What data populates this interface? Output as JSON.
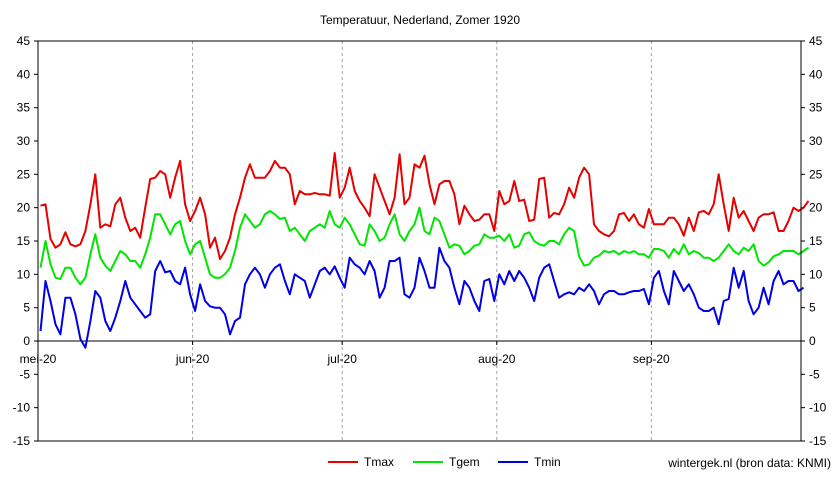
{
  "chart_data": {
    "type": "line",
    "title": "Temperatuur, Nederland, Zomer 1920",
    "credit": "wintergek.nl (bron data: KNMI)",
    "ylim": [
      -15,
      45
    ],
    "yticks": [
      -15,
      -10,
      -5,
      0,
      5,
      10,
      15,
      20,
      25,
      30,
      35,
      40,
      45
    ],
    "y_axis_both_sides": true,
    "grid": "vertical dashed at month starts",
    "legend": "bottom-center",
    "x_start": "1920-05-01",
    "x_end": "1920-09-30",
    "xtick_labels": [
      {
        "date": "1920-05-01",
        "label": "mei-20"
      },
      {
        "date": "1920-06-01",
        "label": "jun-20"
      },
      {
        "date": "1920-07-01",
        "label": "jul-20"
      },
      {
        "date": "1920-08-01",
        "label": "aug-20"
      },
      {
        "date": "1920-09-01",
        "label": "sep-20"
      }
    ],
    "series": [
      {
        "name": "Tmax",
        "color": "#e60000",
        "values": [
          20.3,
          20.5,
          15.3,
          14,
          14.5,
          16.3,
          14.5,
          14.2,
          14.5,
          16.5,
          20.5,
          25,
          17,
          17.5,
          17.2,
          20.5,
          21.5,
          18.5,
          16.5,
          17,
          15.5,
          20,
          24.3,
          24.5,
          25.5,
          25,
          21.5,
          24.5,
          27,
          20.5,
          18,
          19.5,
          21.5,
          19,
          14,
          15.5,
          12.3,
          13.5,
          15.5,
          19,
          21.5,
          24.5,
          26.5,
          24.5,
          24.5,
          24.5,
          25.5,
          27,
          26,
          26,
          25,
          20.5,
          22.5,
          22,
          22,
          22.2,
          22,
          22,
          21.8,
          28.2,
          21.5,
          23,
          26,
          22.5,
          21,
          20,
          18.7,
          25,
          23,
          21,
          19,
          21.5,
          28,
          20.5,
          21.5,
          26.5,
          26,
          27.8,
          23.5,
          20.5,
          23.5,
          24,
          24,
          22,
          17.5,
          20.3,
          19,
          18,
          18.2,
          19,
          19,
          16.5,
          22.5,
          20.5,
          21,
          24,
          21,
          21.2,
          18,
          18.2,
          24.3,
          24.5,
          18.5,
          19.2,
          19,
          20.5,
          23,
          21.5,
          24.5,
          26,
          25,
          17.5,
          16.5,
          16,
          15.7,
          16.5,
          19,
          19.2,
          18,
          19,
          17.5,
          17,
          19.8,
          17.5,
          17.5,
          17.5,
          18.5,
          18.5,
          17.5,
          15.8,
          18.5,
          16.5,
          19.3,
          19.5,
          19,
          20.5,
          25,
          20.5,
          16.5,
          21.5,
          18.5,
          19.5,
          18,
          16.5,
          18.5,
          19,
          19,
          19.3,
          16.5,
          16.5,
          18,
          20,
          19.5,
          20,
          21
        ]
      },
      {
        "name": "Tgem",
        "color": "#00e600",
        "values": [
          11,
          15,
          11.5,
          9.5,
          9.3,
          11,
          11,
          9.5,
          8.5,
          9.5,
          13,
          16,
          12.5,
          11.3,
          10.5,
          12,
          13.5,
          13,
          12,
          12,
          11,
          13,
          15.5,
          19,
          19,
          17.5,
          16,
          17.5,
          18,
          15,
          13,
          14.5,
          15,
          12.5,
          10,
          9.5,
          9.5,
          10,
          11,
          13.5,
          17,
          19,
          18,
          17,
          17.5,
          19,
          19.5,
          19,
          18.3,
          18.5,
          16.5,
          17,
          16,
          15,
          16.5,
          17,
          17.5,
          17,
          19.5,
          17.5,
          17,
          18.5,
          17.5,
          16,
          14.5,
          14.3,
          17.5,
          16.5,
          15,
          15.5,
          17.5,
          19,
          16,
          15,
          16.5,
          17.5,
          20,
          16.5,
          16,
          18.5,
          18,
          16,
          14,
          14.5,
          14.3,
          13,
          13.5,
          14.3,
          14.5,
          16,
          15.5,
          15.5,
          15.8,
          15,
          16,
          14,
          14.3,
          16,
          16.3,
          15,
          14.5,
          14.3,
          15,
          15,
          14.5,
          16,
          17,
          16.5,
          12.7,
          11.3,
          11.5,
          12.5,
          12.8,
          13.5,
          13.3,
          13.5,
          13,
          13.5,
          13.2,
          13.5,
          13,
          13,
          12.5,
          13.8,
          13.8,
          13.5,
          12.5,
          13.8,
          13,
          14.5,
          13,
          13.5,
          13.2,
          12.5,
          12.5,
          12,
          12.5,
          13.5,
          14.5,
          13.5,
          13,
          14,
          13.5,
          14.5,
          12,
          11.3,
          11.8,
          12.7,
          13,
          13.5,
          13.5,
          13.5,
          13,
          13.5,
          14
        ]
      },
      {
        "name": "Tmin",
        "color": "#0000e6",
        "values": [
          1.5,
          9,
          6,
          2.5,
          1,
          6.5,
          6.5,
          4,
          0.3,
          -1,
          3,
          7.5,
          6.5,
          3,
          1.5,
          3.5,
          6,
          9,
          6.5,
          5.5,
          4.5,
          3.5,
          4,
          10.5,
          12,
          10.3,
          10.5,
          9,
          8.5,
          11,
          7,
          4.5,
          8.5,
          6,
          5.2,
          5,
          5,
          4,
          1,
          3,
          3.5,
          8.5,
          10,
          11,
          10,
          8,
          10,
          11,
          11.5,
          9,
          7,
          10,
          9.5,
          9,
          6.5,
          8.5,
          10.5,
          11,
          10,
          11.2,
          9.5,
          8,
          12.5,
          11.5,
          11,
          10,
          12,
          10.5,
          6.5,
          8,
          12,
          12,
          12.5,
          7,
          6.5,
          8,
          12.5,
          10.5,
          8,
          8,
          14,
          12,
          11,
          8,
          5.5,
          9,
          8,
          6,
          4.5,
          9,
          9.3,
          6,
          10,
          8.5,
          10.5,
          9,
          10.5,
          9.5,
          8,
          6,
          9.5,
          11,
          11.5,
          9,
          6.5,
          7,
          7.3,
          7,
          8,
          7.5,
          8.5,
          7.5,
          5.5,
          7,
          7.5,
          7.5,
          7,
          7,
          7.3,
          7.5,
          7.5,
          7.8,
          5.5,
          9.5,
          10.5,
          7.5,
          5.5,
          10.5,
          9,
          7.5,
          8.5,
          7,
          5,
          4.5,
          4.5,
          5,
          2.5,
          6,
          6.3,
          11,
          8,
          10.5,
          6,
          4,
          5,
          8,
          5.5,
          9,
          10.5,
          8.5,
          9,
          9,
          7.5,
          8
        ]
      }
    ]
  }
}
